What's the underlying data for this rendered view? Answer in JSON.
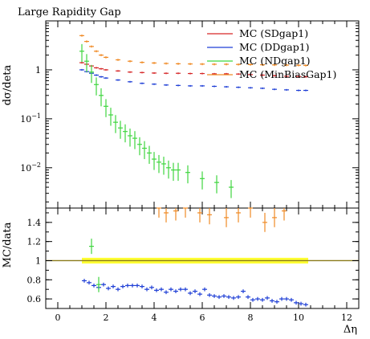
{
  "chart_data": [
    {
      "type": "scatter",
      "title": "Large Rapidity Gap",
      "ylabel": "dσ/deta",
      "yscale": "log",
      "xlim": [
        -0.5,
        12.5
      ],
      "ylim": [
        0.0015,
        10
      ],
      "yticks": [
        {
          "value": 1,
          "label": "1"
        },
        {
          "value": 0.1,
          "label": "10^-1"
        },
        {
          "value": 0.01,
          "label": "10^-2"
        }
      ],
      "legend_position": "top-right",
      "colors": {
        "SDgap1": "#d62728",
        "DDgap1": "#1f3fd6",
        "NDgap1": "#3fd63f",
        "MinBiasGap1": "#f08a24"
      },
      "series": [
        {
          "name": "MC (SDgap1)",
          "key": "SDgap1",
          "x": [
            1.0,
            1.2,
            1.4,
            1.6,
            1.8,
            2.0,
            2.5,
            3.0,
            3.5,
            4.0,
            4.5,
            5.0,
            5.5,
            6.0,
            6.5,
            7.0,
            7.5,
            8.0,
            8.5,
            9.0,
            9.5,
            10.0,
            10.3
          ],
          "y": [
            1.4,
            1.3,
            1.2,
            1.1,
            1.05,
            1.0,
            0.95,
            0.9,
            0.88,
            0.86,
            0.85,
            0.85,
            0.84,
            0.84,
            0.83,
            0.83,
            0.82,
            0.8,
            0.78,
            0.76,
            0.74,
            0.73,
            0.72
          ],
          "yerr_frac": 0.04
        },
        {
          "name": "MC (DDgap1)",
          "key": "DDgap1",
          "x": [
            1.0,
            1.2,
            1.4,
            1.6,
            1.8,
            2.0,
            2.5,
            3.0,
            3.5,
            4.0,
            4.5,
            5.0,
            5.5,
            6.0,
            6.5,
            7.0,
            7.5,
            8.0,
            8.5,
            9.0,
            9.5,
            10.0,
            10.3
          ],
          "y": [
            1.0,
            0.92,
            0.85,
            0.78,
            0.72,
            0.68,
            0.62,
            0.57,
            0.53,
            0.51,
            0.49,
            0.48,
            0.47,
            0.47,
            0.46,
            0.45,
            0.44,
            0.43,
            0.42,
            0.4,
            0.39,
            0.38,
            0.38
          ],
          "yerr_frac": 0.04
        },
        {
          "name": "MC (NDgap1)",
          "key": "NDgap1",
          "x": [
            1.0,
            1.2,
            1.4,
            1.6,
            1.8,
            2.0,
            2.2,
            2.4,
            2.6,
            2.8,
            3.0,
            3.2,
            3.4,
            3.6,
            3.8,
            4.0,
            4.2,
            4.4,
            4.6,
            4.8,
            5.0,
            5.4,
            6.0,
            6.6,
            7.2
          ],
          "y": [
            2.4,
            1.5,
            0.9,
            0.5,
            0.3,
            0.18,
            0.12,
            0.085,
            0.065,
            0.055,
            0.045,
            0.04,
            0.03,
            0.025,
            0.02,
            0.015,
            0.013,
            0.012,
            0.01,
            0.009,
            0.009,
            0.008,
            0.006,
            0.005,
            0.004
          ],
          "yerr_frac": 0.4
        },
        {
          "name": "MC (MinBiasGap1)",
          "key": "MinBiasGap1",
          "x": [
            1.0,
            1.2,
            1.4,
            1.6,
            1.8,
            2.0,
            2.5,
            3.0,
            3.5,
            4.0,
            4.5,
            5.0,
            5.5,
            6.0,
            6.5,
            7.0,
            7.5,
            8.0,
            8.5,
            9.0,
            9.5,
            10.0,
            10.3
          ],
          "y": [
            5.0,
            3.8,
            3.0,
            2.4,
            2.0,
            1.8,
            1.6,
            1.5,
            1.42,
            1.38,
            1.35,
            1.33,
            1.32,
            1.31,
            1.3,
            1.3,
            1.29,
            1.28,
            1.27,
            1.26,
            1.25,
            1.24,
            1.23
          ],
          "yerr_frac": 0.05
        }
      ]
    },
    {
      "type": "scatter",
      "ylabel": "MC/data",
      "xlabel": "Δη",
      "xlim": [
        -0.5,
        12.5
      ],
      "ylim": [
        0.5,
        1.55
      ],
      "yticks": [
        0.6,
        0.8,
        1,
        1.2,
        1.4
      ],
      "xticks": [
        0,
        2,
        4,
        6,
        8,
        10,
        12
      ],
      "reference_line": 1.0,
      "data_band": {
        "x": [
          1.0,
          10.4
        ],
        "y": [
          0.97,
          1.03
        ],
        "color": "#ffff33"
      },
      "series": [
        {
          "key": "DDgap1",
          "x": [
            1.1,
            1.3,
            1.5,
            1.7,
            1.9,
            2.1,
            2.3,
            2.5,
            2.7,
            2.9,
            3.1,
            3.3,
            3.5,
            3.7,
            3.9,
            4.1,
            4.3,
            4.5,
            4.7,
            4.9,
            5.1,
            5.3,
            5.5,
            5.7,
            5.9,
            6.1,
            6.3,
            6.5,
            6.7,
            6.9,
            7.1,
            7.3,
            7.5,
            7.7,
            7.9,
            8.1,
            8.3,
            8.5,
            8.7,
            8.9,
            9.1,
            9.3,
            9.5,
            9.7,
            9.9,
            10.1,
            10.3
          ],
          "y": [
            0.79,
            0.77,
            0.74,
            0.72,
            0.75,
            0.71,
            0.73,
            0.7,
            0.73,
            0.74,
            0.74,
            0.74,
            0.73,
            0.7,
            0.72,
            0.69,
            0.7,
            0.67,
            0.7,
            0.68,
            0.7,
            0.7,
            0.66,
            0.68,
            0.65,
            0.7,
            0.64,
            0.63,
            0.62,
            0.63,
            0.62,
            0.61,
            0.62,
            0.68,
            0.62,
            0.59,
            0.6,
            0.59,
            0.61,
            0.58,
            0.57,
            0.6,
            0.6,
            0.59,
            0.56,
            0.55,
            0.54
          ],
          "yerr": 0.02
        },
        {
          "key": "NDgap1",
          "x": [
            1.4,
            1.7
          ],
          "y": [
            1.15,
            0.75
          ],
          "yerr": 0.08
        },
        {
          "key": "MinBiasGap1",
          "x": [
            4.2,
            4.5,
            4.9,
            5.3,
            5.9,
            6.3,
            7.0,
            7.5,
            8.0,
            8.6,
            9.0,
            9.4
          ],
          "y": [
            1.55,
            1.5,
            1.52,
            1.55,
            1.5,
            1.48,
            1.45,
            1.5,
            1.55,
            1.4,
            1.45,
            1.52
          ],
          "yerr": 0.1
        }
      ]
    }
  ]
}
